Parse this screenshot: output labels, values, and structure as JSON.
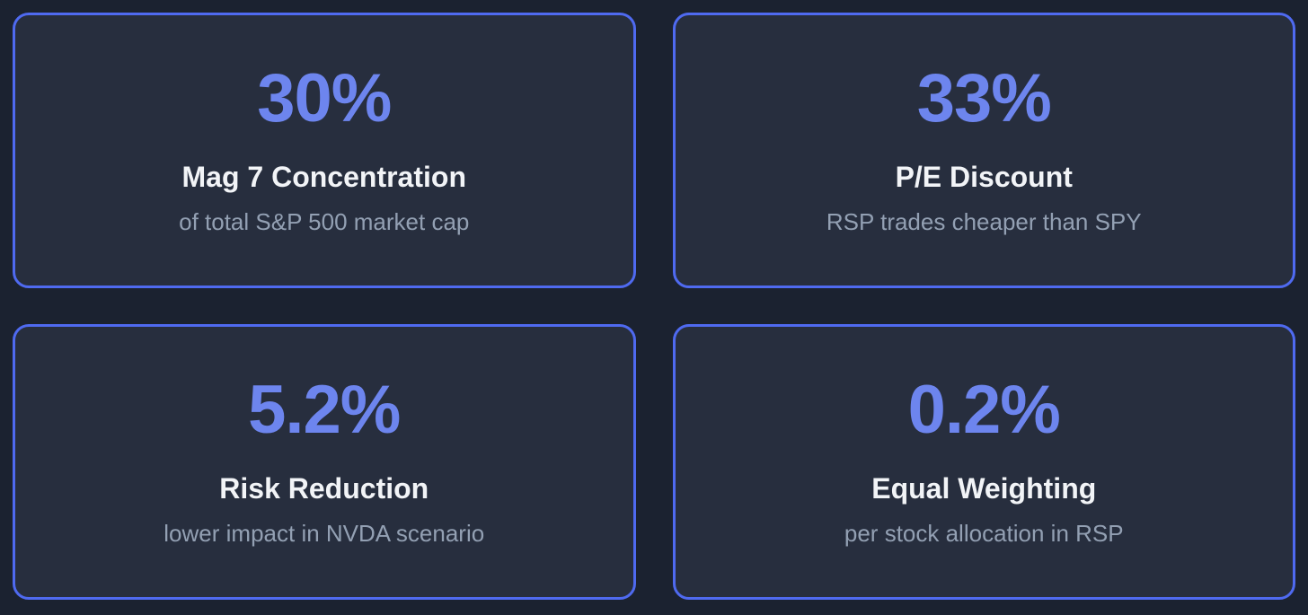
{
  "theme": {
    "page_bg": "#1b2230",
    "card_bg": "#272e3e",
    "card_border": "#4f6af0",
    "value_color": "#6d85ee",
    "title_color": "#f2f4f7",
    "subtitle_color": "#93a0b3"
  },
  "cards": [
    {
      "value": "30%",
      "title": "Mag 7 Concentration",
      "subtitle": "of total S&P 500 market cap"
    },
    {
      "value": "33%",
      "title": "P/E Discount",
      "subtitle": "RSP trades cheaper than SPY"
    },
    {
      "value": "5.2%",
      "title": "Risk Reduction",
      "subtitle": "lower impact in NVDA scenario"
    },
    {
      "value": "0.2%",
      "title": "Equal Weighting",
      "subtitle": "per stock allocation in RSP"
    }
  ]
}
